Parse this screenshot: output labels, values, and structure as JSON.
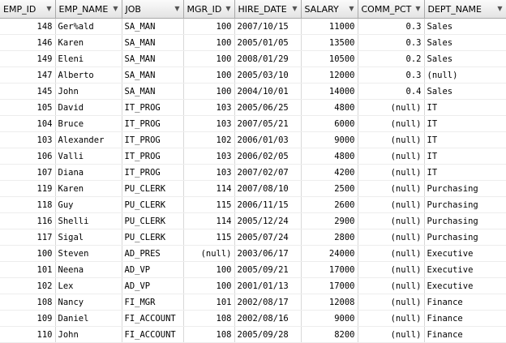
{
  "columns": [
    "EMP_ID",
    "EMP_NAME",
    "JOB",
    "MGR_ID",
    "HIRE_DATE",
    "SALARY",
    "COMM_PCT",
    "DEPT_NAME"
  ],
  "rows": [
    [
      "148",
      "Ger%ald",
      "SA_MAN",
      "100",
      "2007/10/15",
      "11000",
      "0.3",
      "Sales"
    ],
    [
      "146",
      "Karen",
      "SA_MAN",
      "100",
      "2005/01/05",
      "13500",
      "0.3",
      "Sales"
    ],
    [
      "149",
      "Eleni",
      "SA_MAN",
      "100",
      "2008/01/29",
      "10500",
      "0.2",
      "Sales"
    ],
    [
      "147",
      "Alberto",
      "SA_MAN",
      "100",
      "2005/03/10",
      "12000",
      "0.3",
      "(null)"
    ],
    [
      "145",
      "John",
      "SA_MAN",
      "100",
      "2004/10/01",
      "14000",
      "0.4",
      "Sales"
    ],
    [
      "105",
      "David",
      "IT_PROG",
      "103",
      "2005/06/25",
      "4800",
      "(null)",
      "IT"
    ],
    [
      "104",
      "Bruce",
      "IT_PROG",
      "103",
      "2007/05/21",
      "6000",
      "(null)",
      "IT"
    ],
    [
      "103",
      "Alexander",
      "IT_PROG",
      "102",
      "2006/01/03",
      "9000",
      "(null)",
      "IT"
    ],
    [
      "106",
      "Valli",
      "IT_PROG",
      "103",
      "2006/02/05",
      "4800",
      "(null)",
      "IT"
    ],
    [
      "107",
      "Diana",
      "IT_PROG",
      "103",
      "2007/02/07",
      "4200",
      "(null)",
      "IT"
    ],
    [
      "119",
      "Karen",
      "PU_CLERK",
      "114",
      "2007/08/10",
      "2500",
      "(null)",
      "Purchasing"
    ],
    [
      "118",
      "Guy",
      "PU_CLERK",
      "115",
      "2006/11/15",
      "2600",
      "(null)",
      "Purchasing"
    ],
    [
      "116",
      "Shelli",
      "PU_CLERK",
      "114",
      "2005/12/24",
      "2900",
      "(null)",
      "Purchasing"
    ],
    [
      "117",
      "Sigal",
      "PU_CLERK",
      "115",
      "2005/07/24",
      "2800",
      "(null)",
      "Purchasing"
    ],
    [
      "100",
      "Steven",
      "AD_PRES",
      "(null)",
      "2003/06/17",
      "24000",
      "(null)",
      "Executive"
    ],
    [
      "101",
      "Neena",
      "AD_VP",
      "100",
      "2005/09/21",
      "17000",
      "(null)",
      "Executive"
    ],
    [
      "102",
      "Lex",
      "AD_VP",
      "100",
      "2001/01/13",
      "17000",
      "(null)",
      "Executive"
    ],
    [
      "108",
      "Nancy",
      "FI_MGR",
      "101",
      "2002/08/17",
      "12008",
      "(null)",
      "Finance"
    ],
    [
      "109",
      "Daniel",
      "FI_ACCOUNT",
      "108",
      "2002/08/16",
      "9000",
      "(null)",
      "Finance"
    ],
    [
      "110",
      "John",
      "FI_ACCOUNT",
      "108",
      "2005/09/28",
      "8200",
      "(null)",
      "Finance"
    ]
  ]
}
